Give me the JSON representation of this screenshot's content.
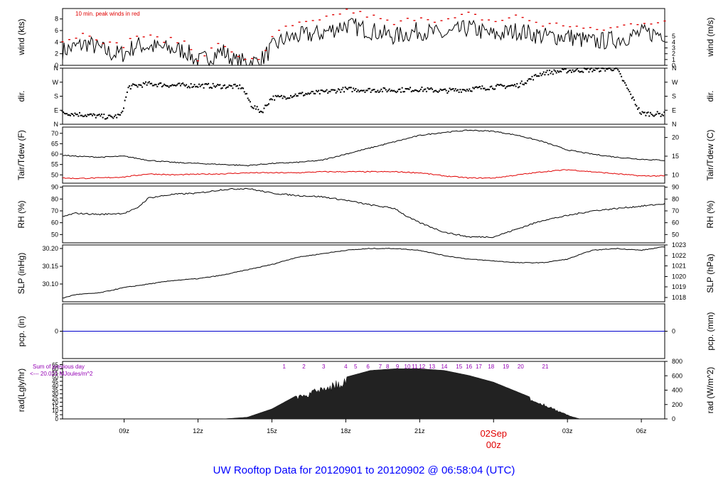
{
  "title": "UW Rooftop Data for 20120901  to  20120902 @ 06:58:04  (UTC)",
  "colors": {
    "axis": "#000000",
    "red": "#e00000",
    "blue": "#0000cc",
    "purple": "#9400b4",
    "title": "#0000ff"
  },
  "chart_data": {
    "type": "line",
    "time_axis": {
      "range_hours": [
        6.5,
        30.95
      ],
      "ticks": [
        {
          "hour": 9,
          "label": "09z"
        },
        {
          "hour": 12,
          "label": "12z"
        },
        {
          "hour": 15,
          "label": "15z"
        },
        {
          "hour": 18,
          "label": "18z"
        },
        {
          "hour": 21,
          "label": "21z"
        },
        {
          "hour": 27,
          "label": "03z"
        },
        {
          "hour": 30,
          "label": "06z"
        }
      ],
      "date_marker": {
        "hour": 24,
        "date": "02Sep",
        "label": "00z"
      }
    },
    "panels": [
      {
        "id": "wind",
        "left_label": "wind (kts)",
        "right_label": "wind (m/s)",
        "ylim": [
          0,
          9.8
        ],
        "left_ticks": [
          "0",
          "2",
          "4",
          "6",
          "8"
        ],
        "left_tick_values": [
          0,
          2,
          4,
          6,
          8
        ],
        "right_ticks": [
          "0",
          "1",
          "2",
          "3",
          "4",
          "5"
        ],
        "right_tick_values": [
          0,
          1,
          2,
          3,
          4,
          5
        ],
        "right_scale": 1.944,
        "annotation": "10 min. peak winds in red",
        "series": [
          {
            "color": "#000000",
            "style": "line",
            "x": [
              6.5,
              7.5,
              8.5,
              9,
              9.5,
              10.5,
              11.5,
              12,
              13,
              13.5,
              14.5,
              15,
              15.5,
              16,
              17,
              18,
              19,
              20,
              21,
              22,
              23,
              24,
              25,
              26,
              27,
              28,
              29,
              30,
              30.95
            ],
            "y": [
              2.5,
              3.8,
              2.0,
              2.0,
              3.5,
              3.0,
              2.5,
              0.6,
              2.5,
              0.6,
              0.6,
              3.0,
              4.5,
              5.0,
              5.5,
              7.0,
              6.0,
              5.0,
              6.0,
              5.2,
              6.5,
              5.2,
              6.0,
              5.0,
              5.0,
              4.0,
              4.5,
              5.5,
              5.5
            ]
          },
          {
            "color": "#e00000",
            "style": "dots",
            "x": [
              6.5,
              7.5,
              8.5,
              9,
              9.5,
              10.5,
              11.5,
              12,
              13,
              13.5,
              14.5,
              15,
              15.5,
              16,
              17,
              18,
              19,
              20,
              21,
              22,
              23,
              24,
              25,
              26,
              27,
              28,
              29,
              30,
              30.95
            ],
            "y": [
              4.2,
              5.6,
              3.5,
              3.5,
              5.2,
              4.5,
              4.0,
              1.2,
              4.0,
              1.2,
              1.2,
              4.5,
              6.5,
              7.0,
              7.6,
              9.5,
              8.5,
              7.0,
              8.5,
              7.5,
              8.8,
              7.5,
              8.5,
              7.0,
              7.0,
              6.0,
              6.5,
              7.5,
              7.5
            ]
          }
        ]
      },
      {
        "id": "dir",
        "left_label": "dir.",
        "right_label": "dir.",
        "ylim": [
          0,
          360
        ],
        "left_ticks": [
          "N",
          "E",
          "S",
          "W",
          "N"
        ],
        "left_tick_values": [
          0,
          90,
          180,
          270,
          360
        ],
        "right_ticks": [
          "N",
          "E",
          "S",
          "W",
          "N"
        ],
        "right_tick_values": [
          0,
          90,
          180,
          270,
          360
        ],
        "series": [
          {
            "color": "#000000",
            "style": "dots",
            "x": [
              6.5,
              7.5,
              8.5,
              8.9,
              9.2,
              10,
              11,
              12,
              13,
              13.8,
              14.2,
              14.6,
              15,
              15.5,
              16,
              17,
              18,
              19,
              20,
              21,
              22,
              23,
              24,
              25,
              25.5,
              26,
              27,
              28,
              29,
              30,
              30.95
            ],
            "y": [
              75,
              60,
              45,
              60,
              240,
              260,
              250,
              250,
              245,
              240,
              120,
              80,
              170,
              175,
              190,
              205,
              225,
              220,
              220,
              225,
              215,
              225,
              240,
              250,
              290,
              330,
              345,
              350,
              360,
              70,
              65
            ]
          }
        ]
      },
      {
        "id": "temp",
        "left_label": "Tair/Tdew (F)",
        "right_label": "Tair/Tdew (C)",
        "ylim": [
          46,
          73
        ],
        "left_ticks": [
          "50",
          "55",
          "60",
          "65",
          "70"
        ],
        "left_tick_values": [
          50,
          55,
          60,
          65,
          70
        ],
        "right_ticks": [
          "10",
          "15",
          "20"
        ],
        "right_tick_values": [
          50,
          59,
          68
        ],
        "series": [
          {
            "color": "#000000",
            "style": "line",
            "x": [
              6.5,
              7,
              8,
              9,
              10,
              11,
              12,
              13,
              14,
              15,
              16,
              17,
              18,
              19,
              20,
              21,
              22,
              23,
              24,
              25,
              26,
              27,
              28,
              29,
              30,
              30.95
            ],
            "y": [
              59.5,
              59,
              58.5,
              59,
              57,
              56,
              55.5,
              55,
              54.5,
              55.5,
              56,
              57,
              60,
              63,
              66,
              69,
              70.5,
              71.5,
              71,
              69,
              66,
              62,
              60,
              58.5,
              57.5,
              57
            ]
          },
          {
            "color": "#e00000",
            "style": "line",
            "x": [
              6.5,
              7,
              8,
              9,
              10,
              11,
              12,
              13,
              14,
              15,
              16,
              17,
              18,
              19,
              20,
              21,
              22,
              23,
              24,
              25,
              26,
              27,
              28,
              29,
              30,
              30.95
            ],
            "y": [
              48.5,
              48.3,
              48.5,
              49,
              50.5,
              50,
              50.3,
              50.5,
              51,
              51,
              51,
              51.5,
              51.5,
              51.5,
              51.5,
              51,
              49.5,
              48.5,
              48.5,
              50,
              51.5,
              52.5,
              51.5,
              50.5,
              49.5,
              49.5
            ]
          }
        ]
      },
      {
        "id": "rh",
        "left_label": "RH (%)",
        "right_label": "RH (%)",
        "ylim": [
          43,
          91
        ],
        "left_ticks": [
          "50",
          "60",
          "70",
          "80",
          "90"
        ],
        "left_tick_values": [
          50,
          60,
          70,
          80,
          90
        ],
        "right_ticks": [
          "50",
          "60",
          "70",
          "80",
          "90"
        ],
        "right_tick_values": [
          50,
          60,
          70,
          80,
          90
        ],
        "series": [
          {
            "color": "#000000",
            "style": "line",
            "x": [
              6.5,
              7,
              8,
              9,
              9.5,
              10,
              11,
              12,
              13,
              14,
              15,
              16,
              17,
              18,
              19,
              20,
              20.5,
              21,
              22,
              23,
              24,
              25,
              26,
              27,
              28,
              29,
              30,
              30.95
            ],
            "y": [
              65,
              68,
              67,
              68,
              72,
              81,
              84,
              85,
              88,
              89,
              85,
              83,
              82,
              79,
              75,
              72,
              65,
              60,
              52,
              48,
              48,
              55,
              62,
              66,
              70,
              72,
              74,
              76
            ]
          }
        ]
      },
      {
        "id": "slp",
        "left_label": "SLP (inHg)",
        "right_label": "SLP (hPa)",
        "ylim": [
          30.05,
          30.21
        ],
        "left_ticks": [
          "30.10",
          "30.15",
          "30.20"
        ],
        "left_tick_values": [
          30.1,
          30.15,
          30.2
        ],
        "right_ticks": [
          "1018",
          "1019",
          "1020",
          "1021",
          "1022",
          "1023"
        ],
        "right_tick_values": [
          30.062,
          30.092,
          30.121,
          30.151,
          30.18,
          30.21
        ],
        "series": [
          {
            "color": "#000000",
            "style": "line",
            "x": [
              6.5,
              7,
              8,
              9,
              10,
              11,
              12,
              13,
              14,
              15,
              16,
              17,
              18,
              19,
              20,
              21,
              22,
              23,
              24,
              25,
              26,
              27,
              28,
              29,
              30,
              30.95
            ],
            "y": [
              30.06,
              30.07,
              30.075,
              30.09,
              30.1,
              30.11,
              30.115,
              30.125,
              30.14,
              30.155,
              30.175,
              30.185,
              30.195,
              30.2,
              30.2,
              30.195,
              30.18,
              30.17,
              30.165,
              30.16,
              30.16,
              30.17,
              30.195,
              30.2,
              30.195,
              30.205
            ]
          }
        ]
      },
      {
        "id": "pcp",
        "left_label": "pcp. (in)",
        "right_label": "pcp. (mm)",
        "ylim": [
          -1,
          1
        ],
        "left_ticks": [
          "0"
        ],
        "left_tick_values": [
          0
        ],
        "right_ticks": [
          "0"
        ],
        "right_tick_values": [
          0
        ],
        "series": [
          {
            "color": "#0000cc",
            "style": "line",
            "x": [
              6.5,
              30.95
            ],
            "y": [
              0,
              0
            ]
          }
        ]
      },
      {
        "id": "rad",
        "left_label": "rad(Lgly/hr)",
        "right_label": "rad (W/m^2)",
        "ylim": [
          0,
          68.8
        ],
        "left_ticks": [
          "0",
          "5",
          "10",
          "15",
          "20",
          "25",
          "30",
          "35",
          "40",
          "45",
          "50",
          "55",
          "60",
          "65"
        ],
        "left_tick_values": [
          0,
          5,
          10,
          15,
          20,
          25,
          30,
          35,
          40,
          45,
          50,
          55,
          60,
          65
        ],
        "right_ticks": [
          "0",
          "200",
          "400",
          "600",
          "800"
        ],
        "right_tick_values": [
          0,
          17.2,
          34.4,
          51.6,
          68.8
        ],
        "sum_label_1": "Sum of previous day",
        "sum_label_2": "<--- 20.021 MJoules/m^2",
        "hour_markers": [
          "1",
          "2",
          "3",
          "4",
          "5",
          "6",
          "7",
          "8",
          "9",
          "10",
          "11",
          "12",
          "13",
          "14",
          "15",
          "16",
          "17",
          "18",
          "19",
          "20",
          "21"
        ],
        "hour_marker_positions": [
          15.5,
          16.3,
          17.1,
          18,
          18.4,
          18.9,
          19.4,
          19.7,
          20.1,
          20.5,
          20.8,
          21.1,
          21.5,
          22,
          22.6,
          23,
          23.4,
          23.9,
          24.5,
          25.1,
          26.1
        ],
        "series": [
          {
            "color": "#222222",
            "style": "area",
            "x": [
              13.0,
              14,
              15,
              16,
              17,
              17.5,
              18,
              19,
              20,
              21,
              22,
              23,
              24,
              25,
              26,
              26.5,
              27,
              27.5
            ],
            "y": [
              0,
              2,
              12,
              28,
              40,
              45,
              50,
              58,
              60,
              60,
              58,
              52,
              44,
              32,
              20,
              12,
              5,
              0
            ]
          }
        ]
      }
    ]
  }
}
